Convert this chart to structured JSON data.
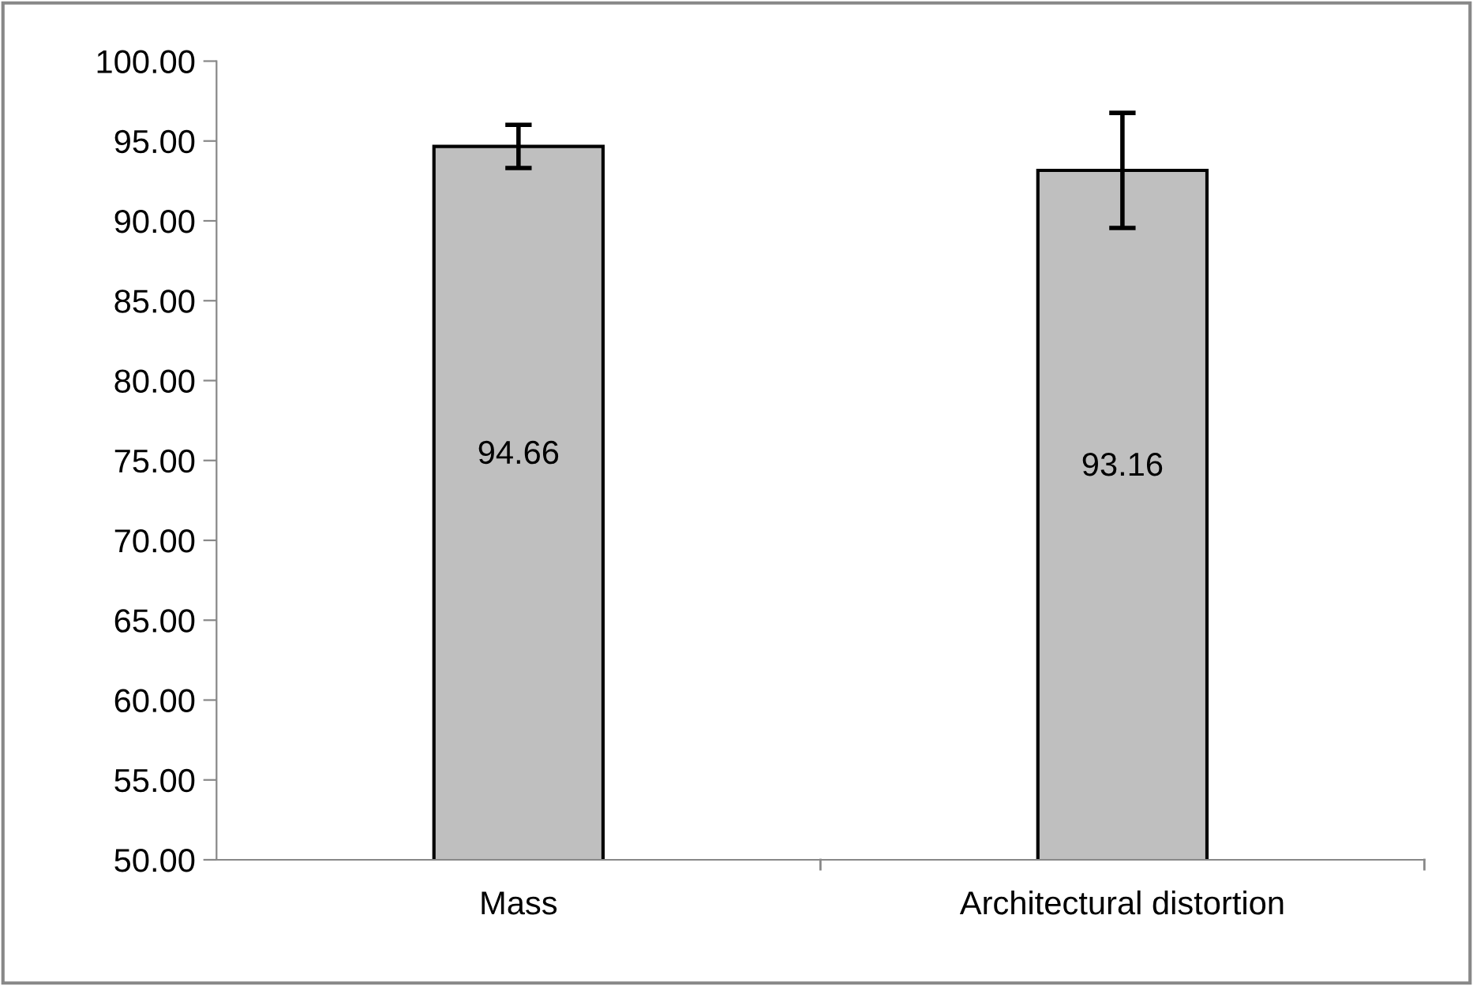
{
  "chart_data": {
    "type": "bar",
    "categories": [
      "Mass",
      "Architectural distortion"
    ],
    "values": [
      94.66,
      93.16
    ],
    "errors": [
      1.35,
      3.6
    ],
    "color": "#bfbfbf",
    "data_labels": true,
    "ylim": [
      50,
      100
    ],
    "yticks": [
      {
        "value": 50,
        "label": "50.00"
      },
      {
        "value": 55,
        "label": "55.00"
      },
      {
        "value": 60,
        "label": "60.00"
      },
      {
        "value": 65,
        "label": "65.00"
      },
      {
        "value": 70,
        "label": "70.00"
      },
      {
        "value": 75,
        "label": "75.00"
      },
      {
        "value": 80,
        "label": "80.00"
      },
      {
        "value": 85,
        "label": "85.00"
      },
      {
        "value": 90,
        "label": "90.00"
      },
      {
        "value": 95,
        "label": "95.00"
      },
      {
        "value": 100,
        "label": "100.00"
      }
    ],
    "grid": false,
    "legend": false
  }
}
